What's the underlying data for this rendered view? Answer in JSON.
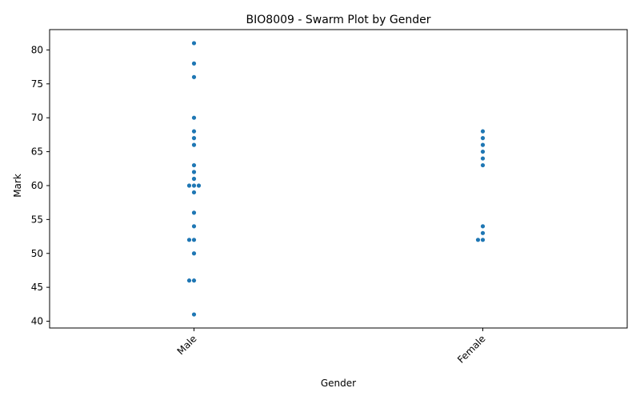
{
  "chart_data": {
    "type": "scatter",
    "subtype": "swarm",
    "title": "BIO8009 - Swarm Plot by Gender",
    "xlabel": "Gender",
    "ylabel": "Mark",
    "categories": [
      "Male",
      "Female"
    ],
    "ylim": [
      39,
      83
    ],
    "yticks": [
      40,
      45,
      50,
      55,
      60,
      65,
      70,
      75,
      80
    ],
    "grid": false,
    "point_color": "#1f77b4",
    "series": [
      {
        "category": "Male",
        "values": [
          81,
          78,
          76,
          70,
          68,
          67,
          66,
          63,
          62,
          61,
          60,
          60,
          60,
          59,
          56,
          54,
          52,
          52,
          50,
          46,
          46,
          41
        ]
      },
      {
        "category": "Female",
        "values": [
          68,
          67,
          66,
          65,
          64,
          63,
          54,
          53,
          52,
          52
        ]
      }
    ]
  }
}
